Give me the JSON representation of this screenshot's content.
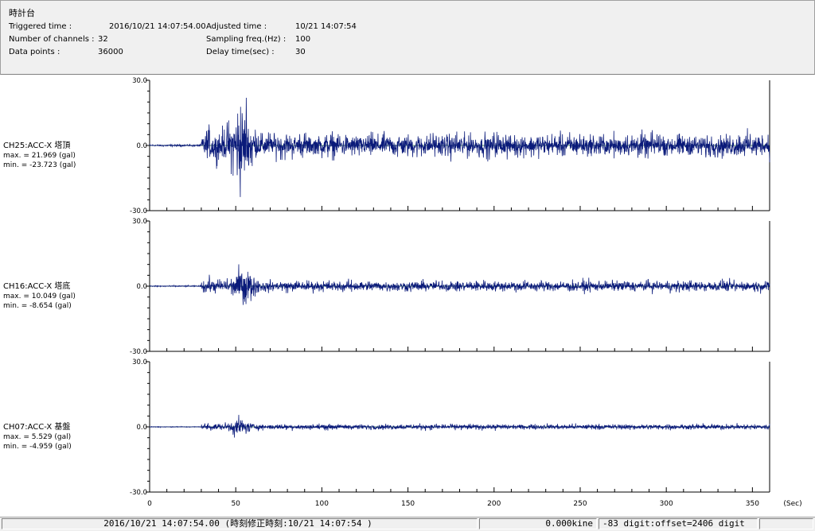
{
  "window": {
    "title": "時計台"
  },
  "info": {
    "triggered_label": "Triggered time :",
    "triggered_value": "2016/10/21 14:07:54.00",
    "channels_label": "Number of channels :",
    "channels_value": "32",
    "datapoints_label": "Data points :",
    "datapoints_value": "36000",
    "adjusted_label": "Adjusted time :",
    "adjusted_value": "10/21 14:07:54",
    "sampling_label": "Sampling freq.(Hz) :",
    "sampling_value": "100",
    "delay_label": "Delay time(sec) :",
    "delay_value": "30"
  },
  "chart_data": {
    "type": "line",
    "x_ticks": [
      "0",
      "50",
      "100",
      "150",
      "200",
      "250",
      "300",
      "350"
    ],
    "x_unit": "(Sec)",
    "xlim": [
      0,
      360
    ],
    "ylim": [
      -30,
      30
    ],
    "y_ticks": [
      "30.0",
      "0.0",
      "-30.0"
    ],
    "line_color": "#0a1a7a",
    "grid": false,
    "panels": [
      {
        "name": "CH25:ACC-X 塔頂",
        "max_text": "max. = 21.969 (gal)",
        "min_text": "min. = -23.723 (gal)",
        "max": 21.969,
        "min": -23.723,
        "onset": 30,
        "peak_time": 53.5,
        "peak_amp": 16,
        "decay": 16,
        "noise": 0.45
      },
      {
        "name": "CH16:ACC-X 塔底",
        "max_text": "max. = 10.049 (gal)",
        "min_text": "min. = -8.654 (gal)",
        "max": 10.049,
        "min": -8.654,
        "onset": 30,
        "peak_time": 55,
        "peak_amp": 7,
        "decay": 10,
        "noise": 0.3
      },
      {
        "name": "CH07:ACC-X 基盤",
        "max_text": "max. = 5.529 (gal)",
        "min_text": "min. = -4.959 (gal)",
        "max": 5.529,
        "min": -4.959,
        "onset": 30,
        "peak_time": 52.5,
        "peak_amp": 3.5,
        "decay": 9,
        "noise": 0.2
      }
    ]
  },
  "status": {
    "time_text": "2016/10/21 14:07:54.00  (時刻修正時刻:10/21 14:07:54  )",
    "kine_text": "0.000kine",
    "digit_text": "-83 digit:offset=2406 digit",
    "empty_text": ""
  }
}
